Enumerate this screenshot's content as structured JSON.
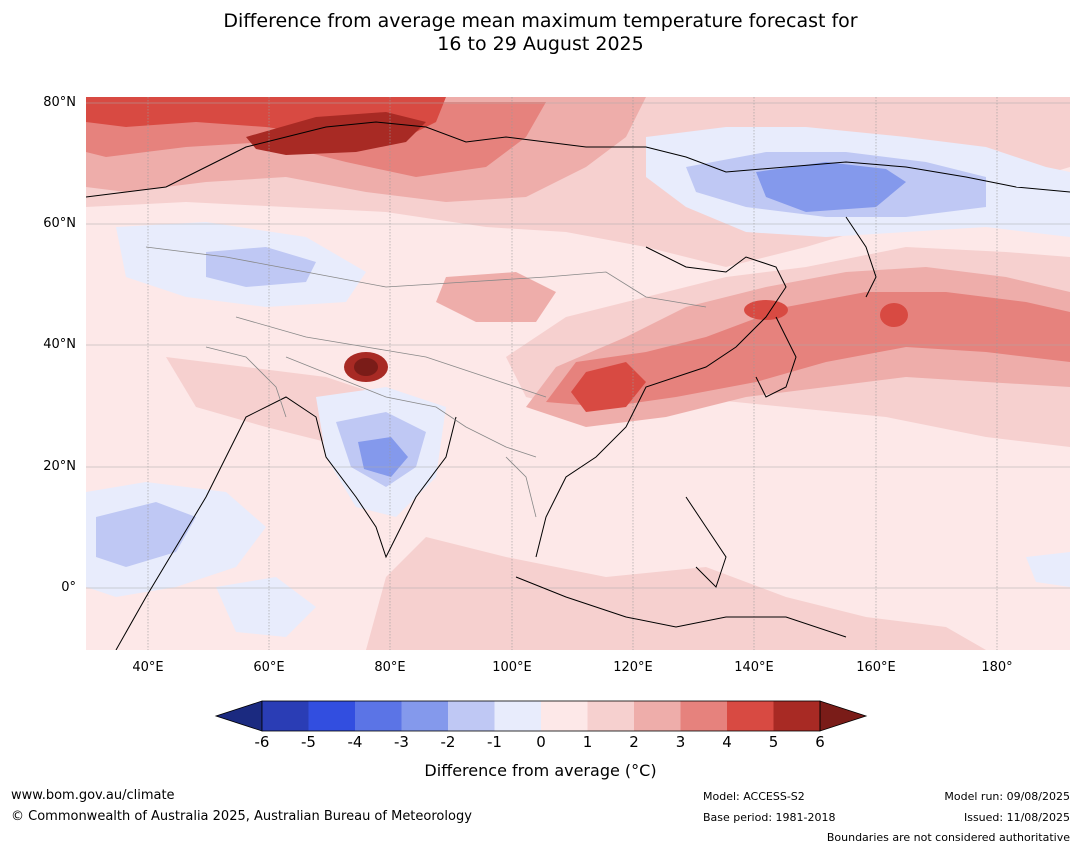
{
  "title_line1": "Difference from average mean maximum temperature forecast for",
  "title_line2": "16 to 29 August 2025",
  "lat_labels": [
    "80°N",
    "60°N",
    "40°N",
    "20°N",
    "0°"
  ],
  "lon_labels": [
    "40°E",
    "60°E",
    "80°E",
    "100°E",
    "120°E",
    "140°E",
    "160°E",
    "180°"
  ],
  "colorbar": {
    "ticks": [
      "-6",
      "-5",
      "-4",
      "-3",
      "-2",
      "-1",
      "0",
      "1",
      "2",
      "3",
      "4",
      "5",
      "6"
    ],
    "colors": [
      "#1b2a80",
      "#2a3db5",
      "#324ee0",
      "#5b74e6",
      "#8499ec",
      "#bfc8f4",
      "#e8ecfc",
      "#fde8e8",
      "#f6d0cf",
      "#eeadaa",
      "#e6827d",
      "#d84a42",
      "#a82a24",
      "#7a1c18"
    ],
    "label": "Difference from average (°C)"
  },
  "footer": {
    "url": "www.bom.gov.au/climate",
    "copyright": "© Commonwealth of Australia 2025, Australian Bureau of Meteorology",
    "model": "Model: ACCESS-S2",
    "base_period": "Base period: 1981-2018",
    "model_run": "Model run: 09/08/2025",
    "issued": "Issued: 11/08/2025",
    "disclaimer": "Boundaries are not considered authoritative"
  }
}
